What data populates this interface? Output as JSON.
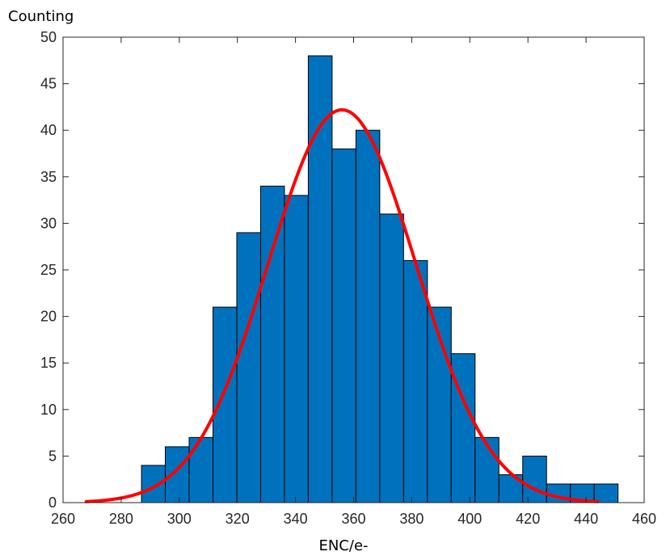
{
  "chart_data": {
    "type": "bar",
    "title": "",
    "xlabel": "ENC/e-",
    "ylabel": "Counting",
    "xlim": [
      260,
      460
    ],
    "ylim": [
      0,
      50
    ],
    "xticks": [
      260,
      280,
      300,
      320,
      340,
      360,
      380,
      400,
      420,
      440,
      460
    ],
    "yticks": [
      0,
      5,
      10,
      15,
      20,
      25,
      30,
      35,
      40,
      45,
      50
    ],
    "bin_width": 8.2,
    "bin_edges_start": 287.0,
    "bins": [
      {
        "x_start": 287.0,
        "x_end": 295.2,
        "count": 4
      },
      {
        "x_start": 295.2,
        "x_end": 303.4,
        "count": 6
      },
      {
        "x_start": 303.4,
        "x_end": 311.6,
        "count": 7
      },
      {
        "x_start": 311.6,
        "x_end": 319.8,
        "count": 21
      },
      {
        "x_start": 319.8,
        "x_end": 328.0,
        "count": 29
      },
      {
        "x_start": 328.0,
        "x_end": 336.2,
        "count": 34
      },
      {
        "x_start": 336.2,
        "x_end": 344.4,
        "count": 33
      },
      {
        "x_start": 344.4,
        "x_end": 352.6,
        "count": 48
      },
      {
        "x_start": 352.6,
        "x_end": 360.8,
        "count": 38
      },
      {
        "x_start": 360.8,
        "x_end": 369.0,
        "count": 40
      },
      {
        "x_start": 369.0,
        "x_end": 377.2,
        "count": 31
      },
      {
        "x_start": 377.2,
        "x_end": 385.4,
        "count": 26
      },
      {
        "x_start": 385.4,
        "x_end": 393.6,
        "count": 21
      },
      {
        "x_start": 393.6,
        "x_end": 401.8,
        "count": 16
      },
      {
        "x_start": 401.8,
        "x_end": 410.0,
        "count": 7
      },
      {
        "x_start": 410.0,
        "x_end": 418.2,
        "count": 3
      },
      {
        "x_start": 418.2,
        "x_end": 426.4,
        "count": 5
      },
      {
        "x_start": 426.4,
        "x_end": 434.6,
        "count": 2
      },
      {
        "x_start": 434.6,
        "x_end": 442.8,
        "count": 2
      },
      {
        "x_start": 442.8,
        "x_end": 451.0,
        "count": 2
      }
    ],
    "fit_curve": {
      "type": "gaussian",
      "peak": 42.2,
      "mean": 356,
      "sigma": 25.5,
      "x_range": [
        268,
        444
      ]
    },
    "colors": {
      "bar_fill": "#0072BD",
      "bar_edge": "#000000",
      "fit_line": "#FF0000",
      "axis": "#262626"
    },
    "grid": false,
    "legend": "none"
  }
}
